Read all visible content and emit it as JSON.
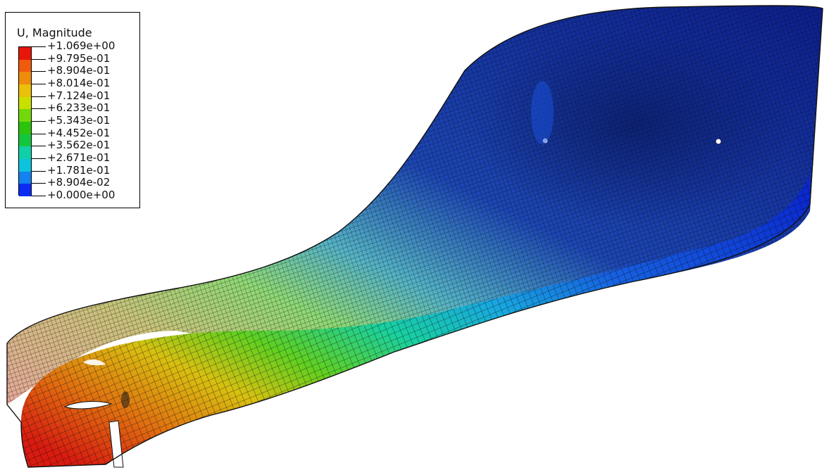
{
  "legend": {
    "title": "U, Magnitude",
    "labels": [
      "+1.069e+00",
      "+9.795e-01",
      "+8.904e-01",
      "+8.014e-01",
      "+7.124e-01",
      "+6.233e-01",
      "+5.343e-01",
      "+4.452e-01",
      "+3.562e-01",
      "+2.671e-01",
      "+1.781e-01",
      "+8.904e-02",
      "+0.000e+00"
    ],
    "band_colors": [
      "#e8160a",
      "#f25a0c",
      "#f08c0b",
      "#eac00a",
      "#c8e000",
      "#72d80a",
      "#2cc40c",
      "#14c63e",
      "#10d0a8",
      "#0cc2dc",
      "#1282f0",
      "#0c2cf4"
    ]
  },
  "model": {
    "mesh_color": "#0a0a0a",
    "color_stops": [
      "#0a22c8",
      "#1a64e0",
      "#18b6e0",
      "#22d890",
      "#58d230",
      "#b8d212",
      "#e0a80e",
      "#e0502a"
    ]
  }
}
